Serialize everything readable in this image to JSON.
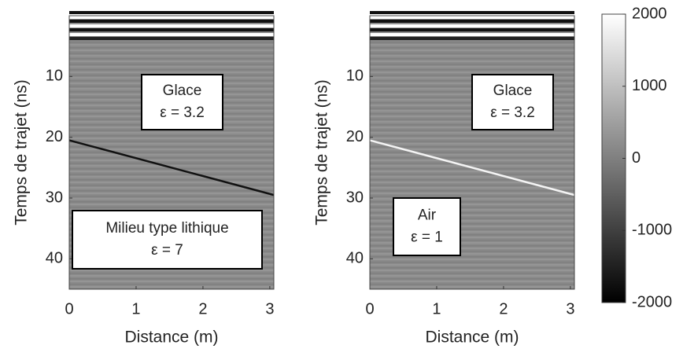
{
  "chart_data": [
    {
      "type": "image",
      "xlabel": "Distance (m)",
      "ylabel": "Temps de trajet (ns)",
      "xlim": [
        0,
        3.06
      ],
      "ylim": [
        0,
        45
      ],
      "xticks": [
        0,
        1,
        2,
        3
      ],
      "yticks": [
        10,
        20,
        30,
        40
      ],
      "reflector": {
        "x": [
          0,
          3.06
        ],
        "y": [
          20.5,
          29.5
        ],
        "color": "#111"
      },
      "annotations": [
        {
          "lines": [
            "Glace",
            "ε = 3.2"
          ]
        },
        {
          "lines": [
            "Milieu type lithique",
            "ε = 7"
          ]
        }
      ]
    },
    {
      "type": "image",
      "xlabel": "Distance (m)",
      "ylabel": "Temps de trajet (ns)",
      "xlim": [
        0,
        3.06
      ],
      "ylim": [
        0,
        45
      ],
      "xticks": [
        0,
        1,
        2,
        3
      ],
      "yticks": [
        10,
        20,
        30,
        40
      ],
      "reflector": {
        "x": [
          0,
          3.06
        ],
        "y": [
          20.5,
          29.5
        ],
        "color": "#f4f4f4"
      },
      "annotations": [
        {
          "lines": [
            "Glace",
            "ε = 3.2"
          ]
        },
        {
          "lines": [
            "Air",
            "ε = 1"
          ]
        }
      ],
      "clim": [
        -2000,
        2000
      ],
      "cticks": [
        2000,
        1000,
        0,
        -1000,
        -2000
      ]
    }
  ]
}
